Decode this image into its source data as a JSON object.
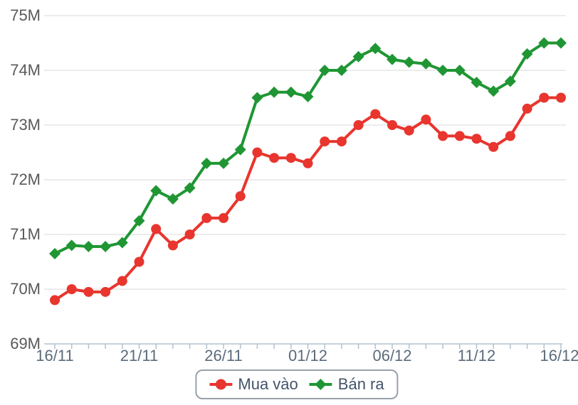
{
  "chart_data": {
    "type": "line",
    "title": "",
    "xlabel": "",
    "ylabel": "",
    "unit": "M",
    "ylim": [
      69,
      75
    ],
    "num_points": 31,
    "grid": "horizontal-only",
    "legend_position": "bottom-center",
    "y_tick_labels": [
      "69M",
      "70M",
      "71M",
      "72M",
      "73M",
      "74M",
      "75M"
    ],
    "x_tick_labels": [
      {
        "index": 0,
        "label": "16/11"
      },
      {
        "index": 5,
        "label": "21/11"
      },
      {
        "index": 10,
        "label": "26/11"
      },
      {
        "index": 15,
        "label": "01/12"
      },
      {
        "index": 20,
        "label": "06/12"
      },
      {
        "index": 25,
        "label": "11/12"
      },
      {
        "index": 30,
        "label": "16/12"
      }
    ],
    "series": [
      {
        "name": "Mua vào",
        "color": "#e8352e",
        "marker": "circle",
        "values": [
          69.8,
          70.0,
          69.95,
          69.95,
          70.15,
          70.5,
          71.1,
          70.8,
          71.0,
          71.3,
          71.3,
          71.7,
          72.5,
          72.4,
          72.4,
          72.3,
          72.7,
          72.7,
          73.0,
          73.2,
          73.0,
          72.9,
          73.1,
          72.8,
          72.8,
          72.75,
          72.6,
          72.8,
          73.3,
          73.5,
          73.5
        ]
      },
      {
        "name": "Bán ra",
        "color": "#1f9633",
        "marker": "diamond",
        "values": [
          70.65,
          70.8,
          70.78,
          70.78,
          70.85,
          71.25,
          71.8,
          71.65,
          71.85,
          72.3,
          72.3,
          72.55,
          73.5,
          73.6,
          73.6,
          73.52,
          74.0,
          74.0,
          74.25,
          74.4,
          74.2,
          74.15,
          74.12,
          74.0,
          74.0,
          73.78,
          73.62,
          73.8,
          74.3,
          74.5,
          74.5
        ]
      }
    ],
    "style_colors": {
      "grid_color": "#d9d9d9",
      "axis_color": "#b3c2cf",
      "y_label_color": "#58595b",
      "x_label_color": "#5b6b7b",
      "legend_text_color": "#44546a",
      "legend_border_color": "#97a1ab"
    }
  }
}
